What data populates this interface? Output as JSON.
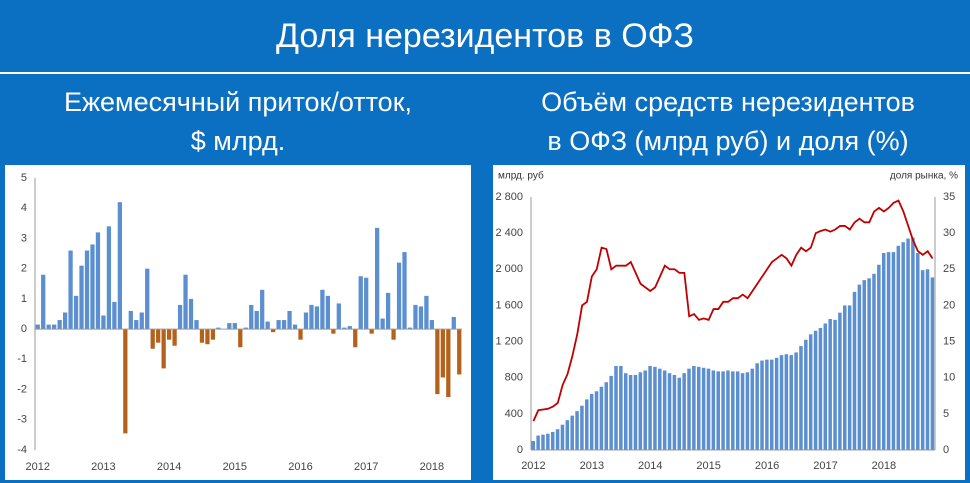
{
  "title": "Доля нерезидентов в ОФЗ",
  "chart_data": [
    {
      "type": "bar",
      "title": [
        "Ежемесячный приток/отток,",
        "$ млрд."
      ],
      "categories": [
        "2012",
        null,
        null,
        null,
        null,
        null,
        null,
        null,
        null,
        null,
        null,
        null,
        "2013",
        null,
        null,
        null,
        null,
        null,
        null,
        null,
        null,
        null,
        null,
        null,
        "2014",
        null,
        null,
        null,
        null,
        null,
        null,
        null,
        null,
        null,
        null,
        null,
        "2015",
        null,
        null,
        null,
        null,
        null,
        null,
        null,
        null,
        null,
        null,
        null,
        "2016",
        null,
        null,
        null,
        null,
        null,
        null,
        null,
        null,
        null,
        null,
        null,
        "2017",
        null,
        null,
        null,
        null,
        null,
        null,
        null,
        null,
        null,
        null,
        null,
        "2018",
        null,
        null,
        null,
        null,
        null
      ],
      "values": [
        0.15,
        1.8,
        0.15,
        0.15,
        0.3,
        0.55,
        2.6,
        1.1,
        2.1,
        2.6,
        2.8,
        3.2,
        0.45,
        3.4,
        0.9,
        4.2,
        -3.45,
        0.6,
        0.3,
        0.55,
        2.0,
        -0.65,
        -0.45,
        -1.3,
        -0.35,
        -0.55,
        0.8,
        1.8,
        1.0,
        0.3,
        -0.45,
        -0.5,
        -0.35,
        0.05,
        0,
        0.2,
        0.2,
        -0.6,
        0.05,
        0.8,
        0.6,
        1.3,
        0.25,
        -0.1,
        0.3,
        0.3,
        0.6,
        0.15,
        -0.35,
        0.55,
        0.8,
        0.75,
        1.3,
        1.1,
        -0.15,
        0.85,
        0.05,
        0.1,
        -0.6,
        1.75,
        1.7,
        -0.15,
        3.35,
        0.35,
        1.2,
        -0.35,
        2.2,
        2.55,
        0.05,
        0.8,
        0.75,
        1.1,
        0.3,
        -2.15,
        -1.6,
        -2.25,
        0.4,
        -1.5
      ],
      "color": "#5b8fd0",
      "negative_color": "#b4621b",
      "ylim": [
        -4,
        5
      ],
      "yticks": [
        -4,
        -3,
        -2,
        -1,
        0,
        1,
        2,
        3,
        4,
        5
      ],
      "grid": false
    },
    {
      "type": "combo",
      "title": [
        "Объём средств нерезидентов",
        "в ОФЗ (млрд руб) и доля (%)"
      ],
      "y_label": "млрд. руб",
      "y2_label": "доля рынка, %",
      "categories": [
        "2012",
        null,
        null,
        null,
        null,
        null,
        null,
        null,
        null,
        null,
        null,
        null,
        "2013",
        null,
        null,
        null,
        null,
        null,
        null,
        null,
        null,
        null,
        null,
        null,
        "2014",
        null,
        null,
        null,
        null,
        null,
        null,
        null,
        null,
        null,
        null,
        null,
        "2015",
        null,
        null,
        null,
        null,
        null,
        null,
        null,
        null,
        null,
        null,
        null,
        "2016",
        null,
        null,
        null,
        null,
        null,
        null,
        null,
        null,
        null,
        null,
        null,
        "2017",
        null,
        null,
        null,
        null,
        null,
        null,
        null,
        null,
        null,
        null,
        null,
        "2018",
        null,
        null,
        null,
        null,
        null,
        null,
        null,
        null,
        null,
        null
      ],
      "series": [
        {
          "type": "bar",
          "color": "#5b8fd0",
          "values": [
            100,
            160,
            170,
            180,
            200,
            230,
            280,
            330,
            380,
            430,
            490,
            560,
            620,
            650,
            700,
            750,
            820,
            930,
            930,
            850,
            830,
            830,
            860,
            880,
            930,
            920,
            900,
            880,
            850,
            830,
            800,
            850,
            900,
            930,
            920,
            910,
            900,
            880,
            870,
            870,
            880,
            870,
            870,
            850,
            860,
            900,
            960,
            990,
            1000,
            1000,
            1020,
            1050,
            1060,
            1050,
            1080,
            1150,
            1220,
            1280,
            1320,
            1350,
            1400,
            1450,
            1440,
            1520,
            1600,
            1600,
            1750,
            1830,
            1880,
            1900,
            1950,
            2050,
            2180,
            2190,
            2190,
            2260,
            2300,
            2340,
            2350,
            2180,
            1990,
            2000,
            1910
          ]
        },
        {
          "type": "line",
          "color": "#c00000",
          "axis": "y2",
          "values": [
            4,
            5.5,
            5.6,
            5.7,
            6,
            6.5,
            9,
            10.5,
            13,
            16,
            20,
            20.5,
            24,
            25,
            28,
            27.8,
            25,
            25.5,
            25.5,
            25.5,
            26,
            24.5,
            23,
            22.5,
            22,
            22.5,
            24,
            25.5,
            25,
            25,
            24.5,
            24.5,
            18.5,
            18.8,
            18,
            18.2,
            18,
            19.5,
            19.5,
            20.5,
            20.5,
            21,
            21,
            21.5,
            21,
            22,
            23,
            24,
            25,
            26,
            26.5,
            27,
            26.5,
            25.5,
            27,
            28,
            27.5,
            28,
            30,
            30.3,
            30.5,
            30.2,
            30.5,
            31,
            31,
            30.5,
            31.5,
            32,
            31.5,
            31.5,
            33,
            33.5,
            33,
            33.5,
            34.2,
            34.5,
            33,
            31,
            29,
            27.5,
            27,
            27.5,
            26.5
          ]
        }
      ],
      "ylim": [
        0,
        2800
      ],
      "yticks": [
        0,
        400,
        800,
        {
          "value": 1200,
          "label": "1 200"
        },
        {
          "value": 1600,
          "label": "1 600"
        },
        {
          "value": 2000,
          "label": "2 000"
        },
        {
          "value": 2400,
          "label": "2 400"
        },
        {
          "value": 2800,
          "label": "2 800"
        }
      ],
      "y2lim": [
        0,
        35
      ],
      "y2ticks": [
        0,
        5,
        10,
        15,
        20,
        25,
        30,
        35
      ],
      "grid": false
    }
  ]
}
